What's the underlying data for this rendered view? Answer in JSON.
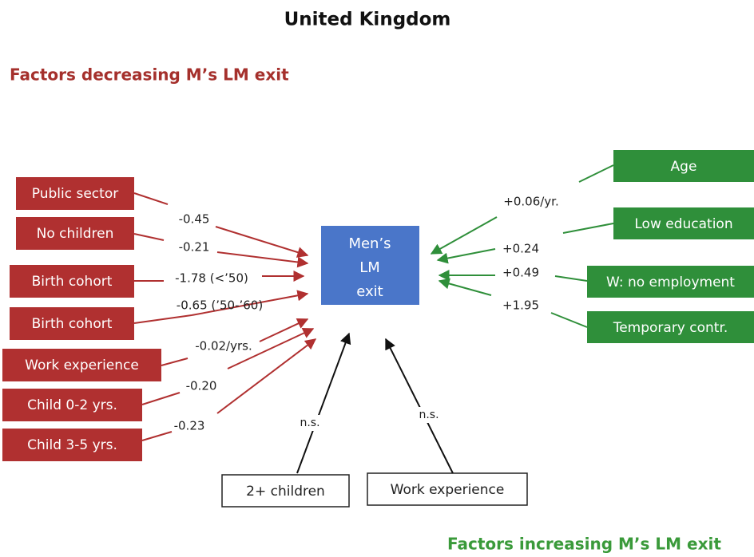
{
  "title": "United Kingdom",
  "decreasing_heading": "Factors decreasing M’s LM exit",
  "increasing_heading": "Factors increasing M’s LM exit",
  "center": {
    "lines": [
      "Men’s",
      "LM",
      "exit"
    ]
  },
  "decreasing_factors": [
    {
      "label": "Public sector",
      "effect": "-0.45"
    },
    {
      "label": "No children",
      "effect": "-0.21"
    },
    {
      "label": "Birth cohort",
      "effect": "-1.78 (<’50)"
    },
    {
      "label": "Birth cohort",
      "effect": "-0.65 (’50-’60)"
    },
    {
      "label": "Work experience",
      "effect": "-0.02/yrs."
    },
    {
      "label": "Child 0-2 yrs.",
      "effect": "-0.20"
    },
    {
      "label": "Child 3-5 yrs.",
      "effect": "-0.23"
    }
  ],
  "increasing_factors": [
    {
      "label": "Age",
      "effect": "+0.06/yr."
    },
    {
      "label": "Low education",
      "effect": "+0.24"
    },
    {
      "label": "W: no employment",
      "effect": "+0.49"
    },
    {
      "label": "Temporary contr.",
      "effect": "+1.95"
    }
  ],
  "nonsignificant_factors": [
    {
      "label": "2+ children",
      "effect": "n.s."
    },
    {
      "label": "Work experience",
      "effect": "n.s."
    }
  ]
}
